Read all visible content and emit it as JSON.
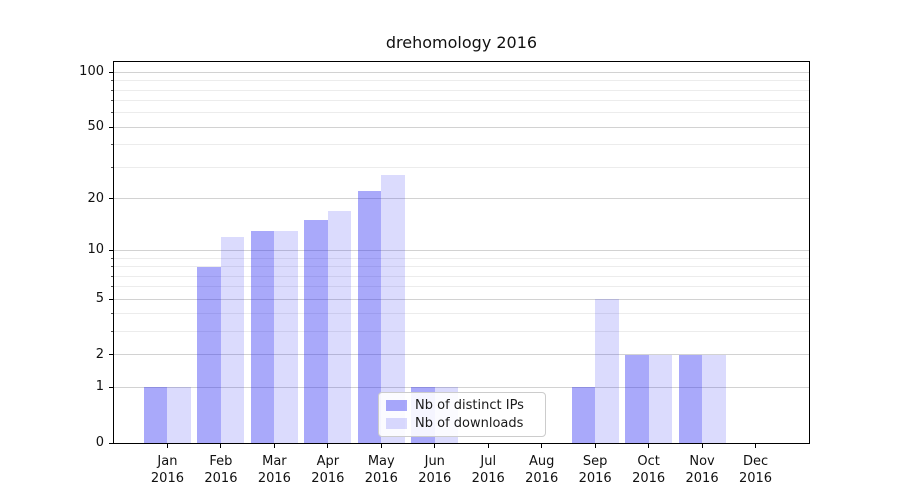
{
  "figure": {
    "background": "#ffffff"
  },
  "chart_data": {
    "type": "bar",
    "title": "drehomology 2016",
    "categories": [
      "Jan 2016",
      "Feb 2016",
      "Mar 2016",
      "Apr 2016",
      "May 2016",
      "Jun 2016",
      "Jul 2016",
      "Aug 2016",
      "Sep 2016",
      "Oct 2016",
      "Nov 2016",
      "Dec 2016"
    ],
    "series": [
      {
        "name": "Nb of distinct IPs",
        "color": "rgba(40,40,243,0.40)",
        "values": [
          1,
          8,
          13,
          15,
          22,
          1,
          0,
          0,
          1,
          2,
          2,
          0
        ]
      },
      {
        "name": "Nb of downloads",
        "color": "rgba(40,40,243,0.17)",
        "values": [
          1,
          12,
          13,
          17,
          27,
          1,
          0,
          0,
          5,
          2,
          2,
          0
        ]
      }
    ],
    "xlabel": "",
    "ylabel": "",
    "yscale": "log1p",
    "ylim": [
      0,
      114
    ],
    "yticks": [
      0,
      1,
      2,
      5,
      10,
      20,
      50,
      100
    ],
    "yticks_minor": [
      3,
      4,
      6,
      7,
      8,
      9,
      30,
      40,
      60,
      70,
      80,
      90
    ],
    "grid": "horizontal, major and minor, on",
    "legend_position": "lower center"
  },
  "theme": {
    "major_grid_color": "#d2d2d2",
    "minor_grid_color": "#ececec",
    "spine_color": "#000000",
    "text_color": "#111111"
  }
}
